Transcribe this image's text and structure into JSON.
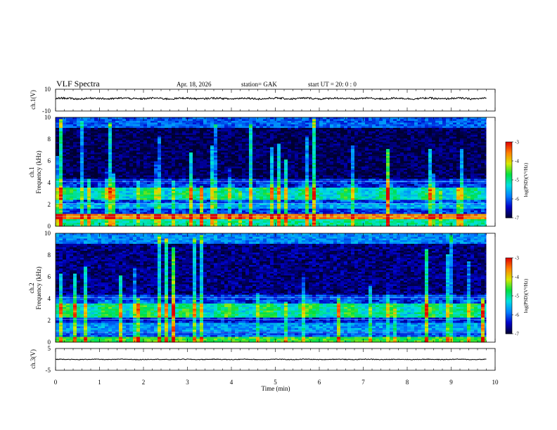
{
  "header": {
    "title": "VLF  Spectra",
    "date": "Apr. 18, 2026",
    "station": "station= GAK",
    "start_ut": "start  UT  =    20: 0   : 0"
  },
  "colors": {
    "colormap": [
      "#000030",
      "#0000c8",
      "#0080ff",
      "#00e0e0",
      "#00e040",
      "#d8e800",
      "#ff8000",
      "#e00000",
      "#ffffff"
    ],
    "trace": "#000000",
    "axis": "#000000"
  },
  "chart_data": {
    "type": "heatmap",
    "title": "VLF  Spectra",
    "xlabel": "Time  (min)",
    "xlim": [
      0,
      10
    ],
    "x_ticks": [
      "0",
      "1",
      "2",
      "3",
      "4",
      "5",
      "6",
      "7",
      "8",
      "9",
      "10"
    ],
    "data_end_min": 9.8,
    "panels": [
      {
        "id": "ch1-waveform",
        "type": "line",
        "ylabel": "ch.1(V)",
        "ylim": [
          -10,
          10
        ],
        "y_ticks": [
          "10",
          "-10"
        ],
        "baseline": 1.5,
        "amplitude": 1.2
      },
      {
        "id": "ch1-spectrogram",
        "type": "heatmap",
        "ylabel_channel": "ch.1",
        "ylabel": "Frequency  (kHz)",
        "ylim": [
          0,
          10
        ],
        "y_ticks": [
          "0",
          "2",
          "4",
          "6",
          "8",
          "10"
        ],
        "log_psd_range": [
          -7,
          -3
        ],
        "bands_khz": [
          {
            "from": 0.0,
            "to": 0.6,
            "level": -5.0
          },
          {
            "from": 0.6,
            "to": 1.1,
            "level": -3.6
          },
          {
            "from": 1.1,
            "to": 1.6,
            "level": -6.2
          },
          {
            "from": 1.6,
            "to": 2.1,
            "level": -5.6
          },
          {
            "from": 2.1,
            "to": 2.4,
            "level": -6.1
          },
          {
            "from": 2.4,
            "to": 3.6,
            "level": -5.1
          },
          {
            "from": 3.6,
            "to": 4.4,
            "level": -6.2
          },
          {
            "from": 4.4,
            "to": 9.0,
            "level": -6.85
          },
          {
            "from": 9.0,
            "to": 10.0,
            "level": -6.0
          }
        ]
      },
      {
        "id": "ch2-spectrogram",
        "type": "heatmap",
        "ylabel_channel": "ch.2",
        "ylabel": "Frequency  (kHz)",
        "ylim": [
          0,
          10
        ],
        "y_ticks": [
          "0",
          "2",
          "4",
          "6",
          "8",
          "10"
        ],
        "log_psd_range": [
          -7,
          -3
        ],
        "bands_khz": [
          {
            "from": 0.0,
            "to": 0.5,
            "level": -4.6
          },
          {
            "from": 0.5,
            "to": 1.0,
            "level": -6.0
          },
          {
            "from": 1.0,
            "to": 1.8,
            "level": -5.7
          },
          {
            "from": 1.8,
            "to": 2.2,
            "level": -6.3
          },
          {
            "from": 2.2,
            "to": 3.6,
            "level": -5.0
          },
          {
            "from": 3.6,
            "to": 4.4,
            "level": -6.1
          },
          {
            "from": 4.4,
            "to": 9.0,
            "level": -6.7
          },
          {
            "from": 9.0,
            "to": 10.0,
            "level": -5.8
          }
        ]
      },
      {
        "id": "ch3-waveform",
        "type": "line",
        "ylabel": "ch.3(V)",
        "ylim": [
          -5,
          5
        ],
        "y_ticks": [
          "5",
          "-5"
        ],
        "baseline": 0.0,
        "amplitude": 0.25
      }
    ],
    "colorbar": {
      "label": "log(PSD)(V²/Hz)",
      "range": [
        -7,
        -3
      ],
      "ticks": [
        "-3",
        "-4",
        "-5",
        "-6",
        "-7"
      ]
    }
  }
}
